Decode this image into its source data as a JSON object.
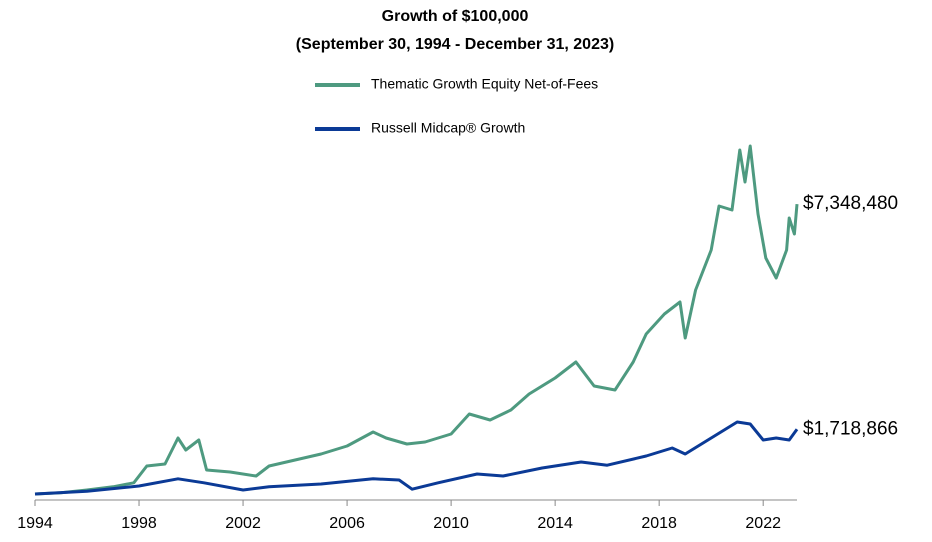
{
  "chart_data": {
    "type": "line",
    "title": "Growth of $100,000",
    "subtitle": "(September 30, 1994 - December 31, 2023)",
    "xlim": [
      1994,
      2023.3
    ],
    "xticks": [
      1994,
      1998,
      2002,
      2006,
      2010,
      2014,
      2018,
      2022
    ],
    "ylim": [
      0,
      9000000
    ],
    "legend": "top",
    "series": [
      {
        "name": "Thematic Growth Equity Net-of-Fees",
        "color": "#4e9a80",
        "x": [
          1994,
          1995,
          1996,
          1997,
          1997.8,
          1998.3,
          1999,
          1999.5,
          1999.8,
          2000.3,
          2000.6,
          2001.5,
          2002.5,
          2003,
          2004,
          2005,
          2006,
          2007,
          2007.5,
          2008.3,
          2009,
          2010,
          2010.7,
          2011.5,
          2012.3,
          2013,
          2014,
          2014.8,
          2015.5,
          2016.3,
          2017,
          2017.5,
          2018.2,
          2018.8,
          2019,
          2019.4,
          2020,
          2020.3,
          2020.8,
          2021.1,
          2021.3,
          2021.5,
          2021.8,
          2022.1,
          2022.5,
          2022.9,
          2023,
          2023.2,
          2023.3
        ],
        "values": [
          100000,
          130000,
          200000,
          280000,
          380000,
          800000,
          850000,
          1500000,
          1200000,
          1450000,
          700000,
          650000,
          550000,
          800000,
          950000,
          1100000,
          1300000,
          1650000,
          1500000,
          1350000,
          1400000,
          1600000,
          2100000,
          1950000,
          2200000,
          2600000,
          3000000,
          3400000,
          2800000,
          2700000,
          3400000,
          4100000,
          4600000,
          4900000,
          4000000,
          5200000,
          6200000,
          7300000,
          7200000,
          8700000,
          7900000,
          8800000,
          7100000,
          6000000,
          5500000,
          6200000,
          7000000,
          6600000,
          7348480
        ],
        "value_labels": [
          null,
          null,
          null,
          null,
          null,
          null,
          null,
          null,
          null,
          null,
          null,
          null,
          null,
          null,
          null,
          null,
          null,
          null,
          null,
          null,
          null,
          null,
          null,
          null,
          null,
          null,
          null,
          null,
          null,
          null,
          null,
          null,
          null,
          null,
          null,
          null,
          null,
          null,
          null,
          null,
          null,
          null,
          null,
          null,
          null,
          null,
          null,
          null,
          "$7,348,480"
        ]
      },
      {
        "name": "Russell Midcap® Growth",
        "color": "#0b3a96",
        "x": [
          1994,
          1996,
          1998,
          1999.5,
          2000.5,
          2002,
          2003,
          2005,
          2007,
          2008,
          2008.5,
          2009.5,
          2011,
          2012,
          2013.5,
          2015,
          2016,
          2017.5,
          2018.5,
          2019,
          2020,
          2021,
          2021.5,
          2022,
          2022.5,
          2023,
          2023.3
        ],
        "values": [
          100000,
          170000,
          300000,
          480000,
          380000,
          200000,
          280000,
          350000,
          480000,
          450000,
          220000,
          380000,
          600000,
          550000,
          750000,
          900000,
          820000,
          1050000,
          1250000,
          1100000,
          1500000,
          1900000,
          1850000,
          1450000,
          1500000,
          1450000,
          1718866
        ],
        "value_labels": [
          null,
          null,
          null,
          null,
          null,
          null,
          null,
          null,
          null,
          null,
          null,
          null,
          null,
          null,
          null,
          null,
          null,
          null,
          null,
          null,
          null,
          null,
          null,
          null,
          null,
          null,
          "$1,718,866"
        ]
      }
    ]
  }
}
